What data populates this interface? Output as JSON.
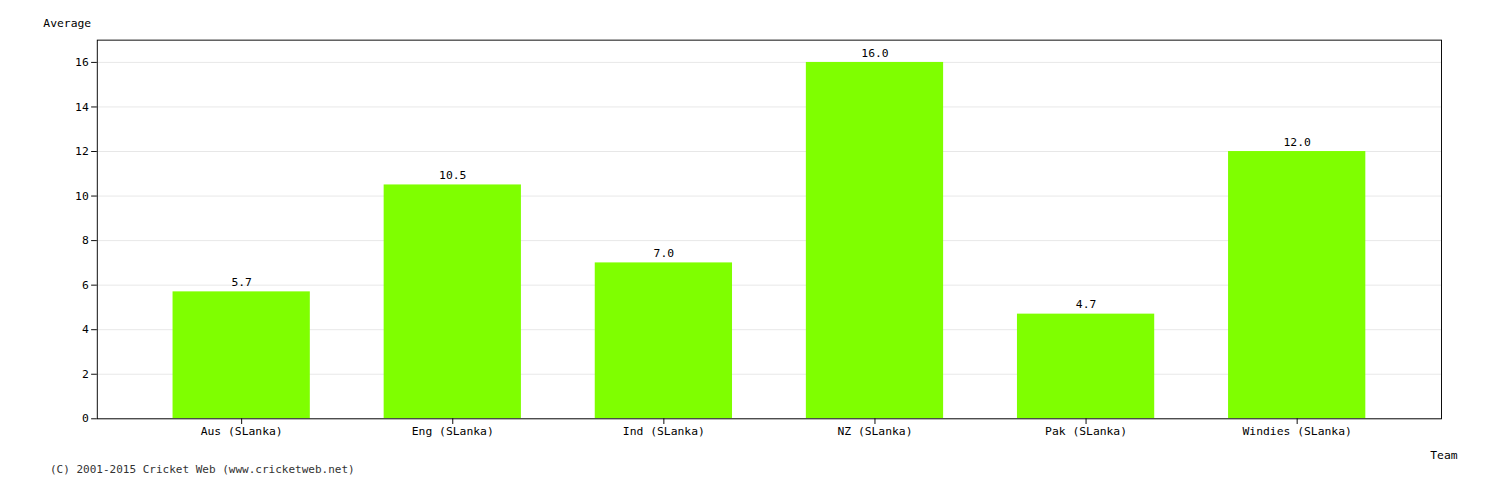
{
  "chart_data": {
    "type": "bar",
    "categories": [
      "Aus (SLanka)",
      "Eng (SLanka)",
      "Ind (SLanka)",
      "NZ (SLanka)",
      "Pak (SLanka)",
      "Windies (SLanka)"
    ],
    "values": [
      5.7,
      10.5,
      7.0,
      16.0,
      4.7,
      12.0
    ],
    "value_labels": [
      "5.7",
      "10.5",
      "7.0",
      "16.0",
      "4.7",
      "12.0"
    ],
    "data_labels": true,
    "color": "#7fff00",
    "xlabel": "Team",
    "ylabel": "Average",
    "ylim": [
      0,
      17
    ],
    "yticks": [
      0,
      2,
      4,
      6,
      8,
      10,
      12,
      14,
      16
    ],
    "grid": true,
    "caption": "(C) 2001-2015 Cricket Web (www.cricketweb.net)"
  }
}
